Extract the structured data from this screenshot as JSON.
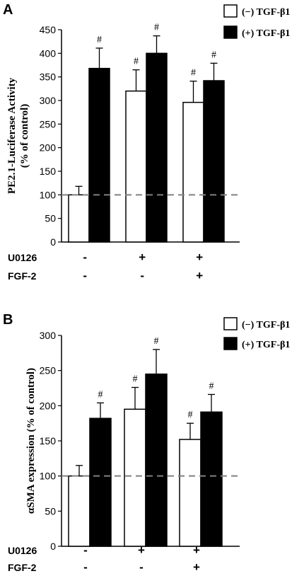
{
  "chart_data": [
    {
      "type": "bar",
      "panel": "A",
      "ylabel": "PE2.1-Luciferase Activity (% of control)",
      "ylabel_lines": [
        "PE2.1-Luciferase Activity",
        "(% of control)"
      ],
      "ylim": [
        0,
        450
      ],
      "yticks": [
        "0",
        "50",
        "100",
        "150",
        "200",
        "250",
        "300",
        "350",
        "400",
        "450"
      ],
      "reference_line": 100,
      "legend": [
        "(−) TGF-β1",
        "(+) TGF-β1"
      ],
      "legend_placement": "top-right",
      "series": [
        {
          "name": "(−) TGF-β1",
          "color": "#ffffff",
          "values": [
            100,
            320,
            296
          ],
          "errors": [
            18,
            45,
            45
          ],
          "marks": [
            "",
            "#",
            "#"
          ]
        },
        {
          "name": "(+) TGF-β1",
          "color": "#000000",
          "values": [
            368,
            400,
            342
          ],
          "errors": [
            43,
            37,
            37
          ],
          "marks": [
            "#",
            "#",
            "#"
          ]
        }
      ],
      "conditions": [
        {
          "label": "U0126",
          "marks": [
            "-",
            "+",
            "+"
          ]
        },
        {
          "label": "FGF-2",
          "marks": [
            "-",
            "-",
            "+"
          ]
        }
      ]
    },
    {
      "type": "bar",
      "panel": "B",
      "ylabel": "αSMA expression (% of control)",
      "ylabel_lines": [
        "αSMA expression (% of control)"
      ],
      "ylim": [
        0,
        300
      ],
      "yticks": [
        "0",
        "50",
        "100",
        "150",
        "200",
        "250",
        "300"
      ],
      "reference_line": 100,
      "legend": [
        "(−) TGF-β1",
        "(+) TGF-β1"
      ],
      "legend_placement": "top-right",
      "series": [
        {
          "name": "(−) TGF-β1",
          "color": "#ffffff",
          "values": [
            100,
            195,
            152
          ],
          "errors": [
            15,
            31,
            23
          ],
          "marks": [
            "",
            "#",
            "#"
          ]
        },
        {
          "name": "(+) TGF-β1",
          "color": "#000000",
          "values": [
            182,
            245,
            191
          ],
          "errors": [
            22,
            35,
            25
          ],
          "marks": [
            "#",
            "#",
            "#"
          ]
        }
      ],
      "conditions": [
        {
          "label": "U0126",
          "marks": [
            "-",
            "+",
            "+"
          ]
        },
        {
          "label": "FGF-2",
          "marks": [
            "-",
            "-",
            "+"
          ]
        }
      ]
    }
  ]
}
